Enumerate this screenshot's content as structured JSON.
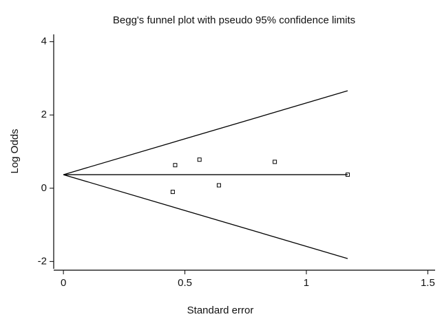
{
  "chart_data": {
    "type": "scatter",
    "title": "Begg's funnel plot with pseudo 95% confidence limits",
    "xlabel": "Standard error",
    "ylabel": "Log Odds",
    "xlim": [
      -0.04,
      1.53
    ],
    "ylim": [
      -2.2,
      4.2
    ],
    "xticks": [
      0,
      0.5,
      1,
      1.5
    ],
    "yticks": [
      -2,
      0,
      2,
      4
    ],
    "grid": false,
    "series": [
      {
        "style": "markers",
        "color": "#000000",
        "x": [
          0.46,
          0.56,
          0.87,
          1.17,
          0.45,
          0.64
        ],
        "values": [
          0.63,
          0.78,
          0.72,
          0.37,
          -0.1,
          0.08
        ]
      },
      {
        "style": "line",
        "color": "#000000",
        "x": [
          0,
          1.17
        ],
        "values": [
          0.37,
          2.66
        ]
      },
      {
        "style": "line",
        "color": "#000000",
        "x": [
          0,
          1.17
        ],
        "values": [
          0.37,
          0.37
        ]
      },
      {
        "style": "line",
        "color": "#000000",
        "x": [
          0,
          1.17
        ],
        "values": [
          0.37,
          -1.92
        ]
      }
    ]
  }
}
